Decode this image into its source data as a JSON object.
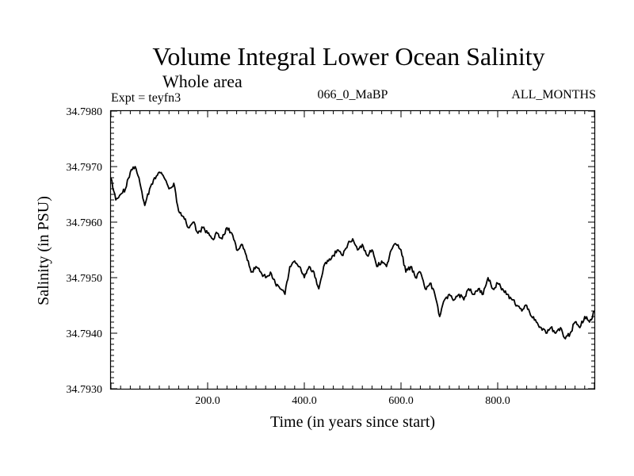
{
  "chart_data": {
    "type": "line",
    "title": "Volume Integral Lower Ocean Salinity",
    "subtitle": "Whole area",
    "annotations": {
      "experiment": "Expt = teyfn3",
      "run": "066_0_MaBP",
      "period": "ALL_MONTHS"
    },
    "xlabel": "Time (in years since start)",
    "ylabel": "Salinity (in PSU)",
    "xlim": [
      0,
      1000
    ],
    "ylim": [
      34.793,
      34.798
    ],
    "x_ticks": [
      200,
      400,
      600,
      800
    ],
    "x_tick_labels": [
      "200.0",
      "400.0",
      "600.0",
      "800.0"
    ],
    "y_ticks": [
      34.793,
      34.794,
      34.795,
      34.796,
      34.797,
      34.798
    ],
    "y_tick_labels": [
      "34.7930",
      "34.7940",
      "34.7950",
      "34.7960",
      "34.7970",
      "34.7980"
    ],
    "grid": false,
    "series": [
      {
        "name": "Salinity",
        "x": [
          0,
          10,
          20,
          30,
          40,
          50,
          60,
          70,
          80,
          90,
          100,
          110,
          120,
          130,
          140,
          150,
          160,
          170,
          180,
          190,
          200,
          210,
          220,
          230,
          240,
          250,
          260,
          270,
          280,
          290,
          300,
          310,
          320,
          330,
          340,
          350,
          360,
          370,
          380,
          390,
          400,
          410,
          420,
          430,
          440,
          450,
          460,
          470,
          480,
          490,
          500,
          510,
          520,
          530,
          540,
          550,
          560,
          570,
          580,
          590,
          600,
          610,
          620,
          630,
          640,
          650,
          660,
          670,
          680,
          690,
          700,
          710,
          720,
          730,
          740,
          750,
          760,
          770,
          780,
          790,
          800,
          810,
          820,
          830,
          840,
          850,
          860,
          870,
          880,
          890,
          900,
          910,
          920,
          930,
          940,
          950,
          960,
          970,
          980,
          990,
          1000
        ],
        "values": [
          34.7968,
          34.7964,
          34.7965,
          34.7966,
          34.7969,
          34.797,
          34.7967,
          34.7963,
          34.7966,
          34.7968,
          34.7969,
          34.7968,
          34.7966,
          34.7967,
          34.7962,
          34.7961,
          34.7959,
          34.796,
          34.7958,
          34.7959,
          34.7958,
          34.7957,
          34.7958,
          34.7957,
          34.7959,
          34.7958,
          34.7955,
          34.7956,
          34.7954,
          34.7951,
          34.7952,
          34.7951,
          34.795,
          34.7951,
          34.7949,
          34.7948,
          34.7947,
          34.7952,
          34.7953,
          34.7952,
          34.795,
          34.7952,
          34.7951,
          34.7948,
          34.7952,
          34.7953,
          34.7954,
          34.7955,
          34.7954,
          34.7956,
          34.7957,
          34.7955,
          34.7956,
          34.7954,
          34.7955,
          34.7952,
          34.7953,
          34.7952,
          34.7955,
          34.7956,
          34.7955,
          34.7951,
          34.7952,
          34.795,
          34.7951,
          34.7948,
          34.7949,
          34.7947,
          34.7943,
          34.7946,
          34.7947,
          34.7946,
          34.7947,
          34.7946,
          34.7948,
          34.7947,
          34.7948,
          34.7947,
          34.795,
          34.7948,
          34.7949,
          34.7948,
          34.7947,
          34.7946,
          34.7945,
          34.7944,
          34.7945,
          34.7943,
          34.7942,
          34.7941,
          34.794,
          34.7941,
          34.794,
          34.7941,
          34.7939,
          34.794,
          34.7942,
          34.7941,
          34.7943,
          34.7942,
          34.7944
        ]
      }
    ]
  }
}
